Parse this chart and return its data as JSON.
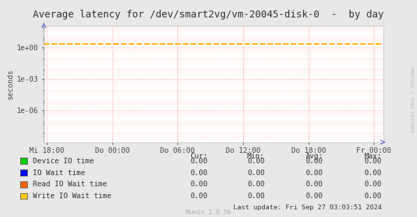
{
  "title": "Average latency for /dev/smart2vg/vm-20045-disk-0  -  by day",
  "ylabel": "seconds",
  "background_color": "#e8e8e8",
  "plot_bg_color": "#ffffff",
  "grid_major_color": "#ffaaaa",
  "grid_minor_color": "#ffdddd",
  "x_labels": [
    "Mi 18:00",
    "Do 00:00",
    "Do 06:00",
    "Do 12:00",
    "Do 18:00",
    "Fr 00:00"
  ],
  "x_tick_positions": [
    0,
    1,
    2,
    3,
    4,
    5
  ],
  "dashed_line_y": 2.0,
  "dashed_line_color": "#ffaa00",
  "y_min": 1e-09,
  "y_max": 100.0,
  "y_ticks": [
    1e-06,
    0.001,
    1.0
  ],
  "y_tick_labels": [
    "1e-06",
    "1e-03",
    "1e+00"
  ],
  "legend_items": [
    {
      "label": "Device IO time",
      "color": "#00cc00"
    },
    {
      "label": "IO Wait time",
      "color": "#0000ff"
    },
    {
      "label": "Read IO Wait time",
      "color": "#ff6600"
    },
    {
      "label": "Write IO Wait time",
      "color": "#ffcc00"
    }
  ],
  "table_headers": [
    "Cur:",
    "Min:",
    "Avg:",
    "Max:"
  ],
  "table_rows": [
    [
      "0.00",
      "0.00",
      "0.00",
      "0.00"
    ],
    [
      "0.00",
      "0.00",
      "0.00",
      "0.00"
    ],
    [
      "0.00",
      "0.00",
      "0.00",
      "0.00"
    ],
    [
      "0.00",
      "0.00",
      "0.00",
      "0.00"
    ]
  ],
  "last_update": "Last update: Fri Sep 27 03:03:51 2024",
  "munin_version": "Munin 2.0.56",
  "watermark": "RRDTOOL / TOBI OETIKER",
  "title_fontsize": 10,
  "axis_fontsize": 7.5,
  "legend_fontsize": 7.5,
  "table_fontsize": 7.5
}
